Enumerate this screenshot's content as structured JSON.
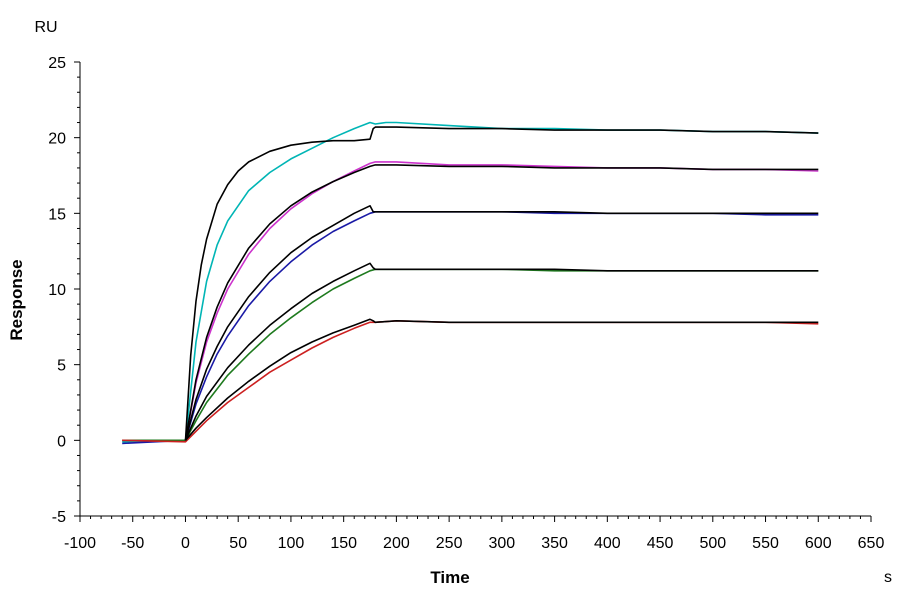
{
  "chart_data": {
    "type": "line",
    "title": "",
    "xlabel": "Time",
    "ylabel": "Response",
    "x_unit": "s",
    "y_unit": "RU",
    "xlim": [
      -100,
      650
    ],
    "ylim": [
      -5,
      25
    ],
    "x_ticks": [
      "-100",
      "-50",
      "0",
      "50",
      "100",
      "150",
      "200",
      "250",
      "300",
      "350",
      "400",
      "450",
      "500",
      "550",
      "600",
      "650"
    ],
    "y_ticks": [
      "-5",
      "0",
      "5",
      "10",
      "15",
      "20",
      "25"
    ],
    "grid": false,
    "legend": "none",
    "series": [
      {
        "color": "#00b5b5",
        "x": [
          -60,
          0,
          10,
          20,
          30,
          40,
          60,
          80,
          100,
          120,
          140,
          160,
          175,
          180,
          190,
          200,
          250,
          300,
          350,
          400,
          450,
          500,
          550,
          600
        ],
        "y": [
          -0.1,
          0,
          6.5,
          10.5,
          12.9,
          14.5,
          16.5,
          17.7,
          18.6,
          19.3,
          20.0,
          20.6,
          21.0,
          20.9,
          21.0,
          21.0,
          20.8,
          20.6,
          20.6,
          20.5,
          20.5,
          20.4,
          20.4,
          20.3
        ]
      },
      {
        "color": "#cc33cc",
        "x": [
          -60,
          0,
          10,
          20,
          30,
          40,
          60,
          80,
          100,
          120,
          140,
          160,
          175,
          180,
          200,
          250,
          300,
          350,
          400,
          450,
          500,
          550,
          600
        ],
        "y": [
          0,
          0,
          3.8,
          6.5,
          8.4,
          10.0,
          12.3,
          14.0,
          15.3,
          16.3,
          17.1,
          17.8,
          18.3,
          18.4,
          18.4,
          18.2,
          18.2,
          18.1,
          18.0,
          18.0,
          17.9,
          17.9,
          17.8
        ]
      },
      {
        "color": "#1a1aa6",
        "x": [
          -60,
          0,
          10,
          20,
          30,
          40,
          60,
          80,
          100,
          120,
          140,
          160,
          175,
          180,
          200,
          250,
          300,
          350,
          400,
          450,
          500,
          550,
          600
        ],
        "y": [
          -0.2,
          0,
          2.4,
          4.2,
          5.7,
          6.9,
          8.9,
          10.5,
          11.8,
          12.9,
          13.8,
          14.5,
          15.0,
          15.1,
          15.1,
          15.1,
          15.1,
          15.0,
          15.0,
          15.0,
          15.0,
          14.9,
          14.9
        ]
      },
      {
        "color": "#1e7a1e",
        "x": [
          -60,
          0,
          10,
          20,
          40,
          60,
          80,
          100,
          120,
          140,
          160,
          175,
          180,
          200,
          250,
          300,
          350,
          400,
          450,
          500,
          550,
          600
        ],
        "y": [
          0,
          0,
          1.3,
          2.5,
          4.3,
          5.7,
          7.0,
          8.1,
          9.1,
          10.0,
          10.7,
          11.2,
          11.3,
          11.3,
          11.3,
          11.3,
          11.2,
          11.2,
          11.2,
          11.2,
          11.2,
          11.2
        ]
      },
      {
        "color": "#cc2020",
        "x": [
          -60,
          0,
          10,
          20,
          40,
          60,
          80,
          100,
          120,
          140,
          160,
          175,
          180,
          200,
          250,
          300,
          350,
          400,
          450,
          500,
          550,
          600
        ],
        "y": [
          0,
          -0.1,
          0.6,
          1.3,
          2.5,
          3.5,
          4.5,
          5.3,
          6.1,
          6.8,
          7.4,
          7.8,
          7.8,
          7.9,
          7.8,
          7.8,
          7.8,
          7.8,
          7.8,
          7.8,
          7.8,
          7.7
        ]
      }
    ],
    "fits": [
      {
        "color": "#000000",
        "x": [
          0,
          5,
          10,
          15,
          20,
          30,
          40,
          50,
          60,
          80,
          100,
          120,
          140,
          160,
          175,
          178,
          180,
          200,
          250,
          300,
          350,
          400,
          450,
          500,
          550,
          600
        ],
        "y": [
          0,
          5.6,
          9.2,
          11.6,
          13.3,
          15.6,
          16.9,
          17.8,
          18.4,
          19.1,
          19.5,
          19.7,
          19.8,
          19.8,
          19.9,
          20.6,
          20.7,
          20.7,
          20.6,
          20.6,
          20.5,
          20.5,
          20.5,
          20.4,
          20.4,
          20.3
        ]
      },
      {
        "color": "#000000",
        "x": [
          0,
          10,
          20,
          30,
          40,
          60,
          80,
          100,
          120,
          140,
          160,
          175,
          180,
          200,
          250,
          300,
          350,
          400,
          450,
          500,
          550,
          600
        ],
        "y": [
          0,
          4.0,
          6.8,
          8.8,
          10.4,
          12.7,
          14.3,
          15.5,
          16.4,
          17.1,
          17.7,
          18.1,
          18.2,
          18.2,
          18.1,
          18.1,
          18.0,
          18.0,
          18.0,
          17.9,
          17.9,
          17.9
        ]
      },
      {
        "color": "#000000",
        "x": [
          0,
          10,
          20,
          30,
          40,
          60,
          80,
          100,
          120,
          140,
          160,
          175,
          178,
          180,
          200,
          250,
          300,
          350,
          400,
          450,
          500,
          550,
          600
        ],
        "y": [
          0,
          2.7,
          4.7,
          6.2,
          7.5,
          9.5,
          11.1,
          12.4,
          13.4,
          14.2,
          15.0,
          15.5,
          15.1,
          15.1,
          15.1,
          15.1,
          15.1,
          15.1,
          15.0,
          15.0,
          15.0,
          15.0,
          15.0
        ]
      },
      {
        "color": "#000000",
        "x": [
          0,
          10,
          20,
          40,
          60,
          80,
          100,
          120,
          140,
          160,
          175,
          178,
          180,
          200,
          250,
          300,
          350,
          400,
          450,
          500,
          550,
          600
        ],
        "y": [
          0,
          1.6,
          2.9,
          4.8,
          6.3,
          7.6,
          8.7,
          9.7,
          10.5,
          11.2,
          11.7,
          11.4,
          11.3,
          11.3,
          11.3,
          11.3,
          11.3,
          11.2,
          11.2,
          11.2,
          11.2,
          11.2
        ]
      },
      {
        "color": "#000000",
        "x": [
          0,
          10,
          20,
          40,
          60,
          80,
          100,
          120,
          140,
          160,
          175,
          178,
          180,
          200,
          250,
          300,
          350,
          400,
          450,
          500,
          550,
          600
        ],
        "y": [
          0,
          0.8,
          1.5,
          2.8,
          3.9,
          4.9,
          5.8,
          6.5,
          7.1,
          7.6,
          8.0,
          7.9,
          7.8,
          7.9,
          7.8,
          7.8,
          7.8,
          7.8,
          7.8,
          7.8,
          7.8,
          7.8
        ]
      }
    ]
  }
}
